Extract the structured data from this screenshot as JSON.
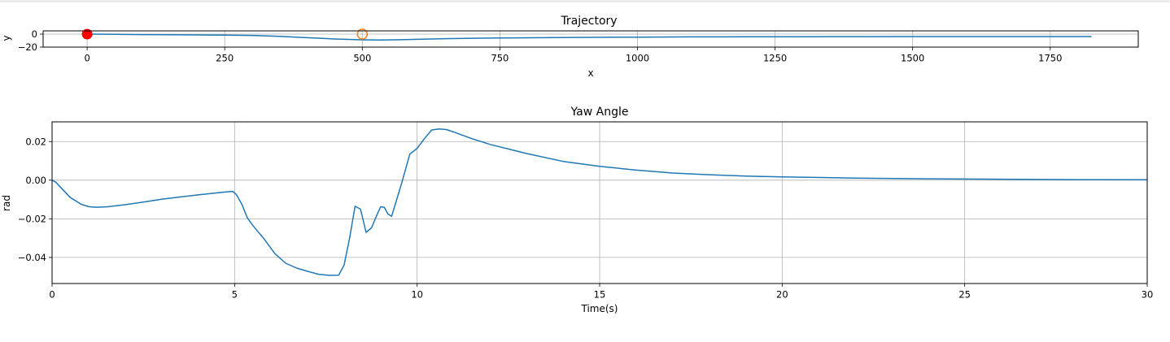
{
  "chart_data": [
    {
      "type": "line",
      "title": "Trajectory",
      "xlabel": "x",
      "ylabel": "y",
      "xlim": [
        -80,
        1910
      ],
      "ylim": [
        -20,
        5
      ],
      "xticks": [
        0,
        250,
        500,
        750,
        1000,
        1250,
        1500,
        1750
      ],
      "yticks": [
        -20,
        0
      ],
      "grid": true,
      "series": [
        {
          "x": [
            0,
            50,
            100,
            150,
            200,
            250,
            300,
            350,
            400,
            450,
            500,
            530,
            560,
            600,
            650,
            700,
            750,
            800,
            900,
            1000,
            1100,
            1200,
            1300,
            1400,
            1500,
            1600,
            1700,
            1780,
            1825
          ],
          "y": [
            0,
            -0.3,
            -0.7,
            -1.0,
            -1.3,
            -1.6,
            -2.0,
            -3.5,
            -5.5,
            -7.5,
            -8.7,
            -9.0,
            -8.8,
            -8.0,
            -7.0,
            -6.4,
            -5.9,
            -5.6,
            -5.0,
            -4.6,
            -4.3,
            -4.1,
            -4.0,
            -3.9,
            -3.8,
            -3.8,
            -3.8,
            -3.8,
            -3.8
          ]
        }
      ],
      "markers": [
        {
          "label": "start",
          "x": 0,
          "y": 0,
          "style": "filled",
          "color": "#ff0000"
        },
        {
          "label": "target",
          "x": 500,
          "y": 0,
          "style": "hollow",
          "color": "#ff7f0e"
        }
      ]
    },
    {
      "type": "line",
      "title": "Yaw Angle",
      "xlabel": "Time(s)",
      "ylabel": "rad",
      "xlim": [
        0,
        30
      ],
      "ylim": [
        -0.0535,
        0.0302
      ],
      "xticks": [
        0,
        5,
        10,
        15,
        20,
        25,
        30
      ],
      "yticks": [
        -0.04,
        -0.02,
        0.0,
        0.02
      ],
      "ytick_labels": [
        "−0.04",
        "−0.02",
        "0.00",
        "0.02"
      ],
      "grid": true,
      "series": [
        {
          "x": [
            0,
            0.1,
            0.3,
            0.5,
            0.8,
            1.0,
            1.2,
            1.5,
            2.0,
            2.5,
            3.0,
            3.5,
            4.0,
            4.5,
            4.8,
            4.95,
            5.05,
            5.2,
            5.35,
            5.5,
            5.8,
            6.1,
            6.4,
            6.7,
            7.0,
            7.3,
            7.6,
            7.85,
            8.0,
            8.15,
            8.3,
            8.45,
            8.6,
            8.75,
            8.9,
            9.0,
            9.1,
            9.2,
            9.3,
            9.45,
            9.6,
            9.8,
            10.0,
            10.2,
            10.4,
            10.6,
            10.8,
            11.0,
            11.5,
            12.0,
            13.0,
            14.0,
            15.0,
            16.0,
            17.0,
            18.0,
            19.0,
            20.0,
            22.0,
            24.0,
            26.0,
            28.0,
            30.0
          ],
          "y": [
            0.0,
            -0.001,
            -0.005,
            -0.009,
            -0.0125,
            -0.0137,
            -0.014,
            -0.0138,
            -0.0127,
            -0.0113,
            -0.0099,
            -0.0087,
            -0.0076,
            -0.0066,
            -0.006,
            -0.0058,
            -0.0075,
            -0.0125,
            -0.0195,
            -0.0235,
            -0.0302,
            -0.038,
            -0.043,
            -0.0455,
            -0.0472,
            -0.0487,
            -0.0493,
            -0.0492,
            -0.044,
            -0.03,
            -0.0135,
            -0.015,
            -0.027,
            -0.0247,
            -0.0179,
            -0.0138,
            -0.014,
            -0.0175,
            -0.0187,
            -0.0095,
            0.0,
            0.0135,
            0.0165,
            0.0215,
            0.026,
            0.0265,
            0.0262,
            0.025,
            0.0215,
            0.0185,
            0.0138,
            0.0097,
            0.0072,
            0.0052,
            0.0037,
            0.0028,
            0.0021,
            0.0017,
            0.0011,
            0.0007,
            0.0005,
            0.0003,
            0.0002
          ]
        }
      ]
    }
  ]
}
